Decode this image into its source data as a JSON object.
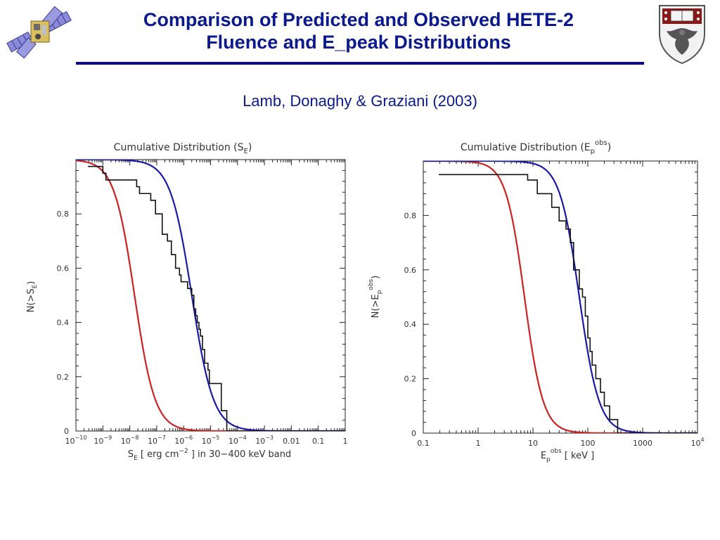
{
  "slide": {
    "title_line1": "Comparison of Predicted and Observed HETE-2",
    "title_line2": "Fluence and E_peak Distributions",
    "subtitle": "Lamb, Donaghy & Graziani (2003)"
  },
  "colors": {
    "title": "#0a1a8c",
    "observed": "#111111",
    "model_blue": "#1a1aa8",
    "model_red": "#cc2222"
  },
  "chart_data": [
    {
      "type": "line",
      "title_main": "Cumulative Distribution (S",
      "title_sub": "E",
      "title_end": ")",
      "ylabel_main": "N(>S",
      "ylabel_sub": "E",
      "ylabel_end": ")",
      "xlabel_parts": [
        "S",
        "E",
        " [ erg cm",
        "−2",
        " ] in 30−400 keV band"
      ],
      "xscale": "log",
      "xlim": [
        1e-10,
        1
      ],
      "ylim": [
        0,
        1
      ],
      "yticks": [
        "0",
        "0.2",
        "0.4",
        "0.6",
        "0.8"
      ],
      "xtick_labels": [
        {
          "base": "10",
          "exp": "−10"
        },
        {
          "base": "10",
          "exp": "−9"
        },
        {
          "base": "10",
          "exp": "−8"
        },
        {
          "base": "10",
          "exp": "−7"
        },
        {
          "base": "10",
          "exp": "−6"
        },
        {
          "base": "10",
          "exp": "−5"
        },
        {
          "base": "10",
          "exp": "−4"
        },
        {
          "base": "10",
          "exp": "−3"
        },
        {
          "base": "0.01",
          "exp": ""
        },
        {
          "base": "0.1",
          "exp": ""
        },
        {
          "base": "1",
          "exp": ""
        }
      ],
      "series": [
        {
          "color": "#111111",
          "kind": "step",
          "x": [
            2.8e-10,
            1e-09,
            1.3e-09,
            1.8e-08,
            2.3e-08,
            6e-08,
            9e-08,
            1.6e-07,
            2.5e-07,
            3.5e-07,
            5e-07,
            7e-07,
            8e-07,
            1.4e-06,
            2e-06,
            2.4e-06,
            2.8e-06,
            3.2e-06,
            3.7e-06,
            4.2e-06,
            5e-06,
            6e-06,
            8e-06,
            9e-06,
            2.5e-05,
            4e-05
          ],
          "y": [
            0.975,
            0.95,
            0.925,
            0.9,
            0.875,
            0.85,
            0.8,
            0.725,
            0.7,
            0.65,
            0.6,
            0.575,
            0.55,
            0.525,
            0.5,
            0.45,
            0.425,
            0.4,
            0.375,
            0.35,
            0.3,
            0.25,
            0.225,
            0.175,
            0.075,
            0.0
          ]
        },
        {
          "color": "#1a1aa8",
          "kind": "logistic",
          "x0": 2e-06,
          "width_dex": 0.4
        },
        {
          "color": "#cc2222",
          "kind": "logistic",
          "x0": 1.5e-08,
          "width_dex": 0.38
        }
      ]
    },
    {
      "type": "line",
      "title_main": "Cumulative Distribution (E",
      "title_sub": "p",
      "title_sup": "obs",
      "title_end": ")",
      "ylabel_main": "N(>E",
      "ylabel_sub": "p",
      "ylabel_sup": "obs",
      "ylabel_end": ")",
      "xlabel_parts": [
        "E",
        "p",
        "obs",
        " [ keV ]"
      ],
      "xscale": "log",
      "xlim": [
        0.1,
        10000
      ],
      "ylim": [
        0,
        1
      ],
      "yticks": [
        "0",
        "0.2",
        "0.4",
        "0.6",
        "0.8"
      ],
      "xtick_labels": [
        {
          "base": "0.1",
          "exp": ""
        },
        {
          "base": "1",
          "exp": ""
        },
        {
          "base": "10",
          "exp": ""
        },
        {
          "base": "100",
          "exp": ""
        },
        {
          "base": "1000",
          "exp": ""
        },
        {
          "base": "10",
          "exp": "4"
        }
      ],
      "series": [
        {
          "color": "#111111",
          "kind": "step",
          "x": [
            5,
            8,
            12,
            22,
            30,
            40,
            48,
            55,
            70,
            80,
            90,
            100,
            110,
            120,
            140,
            170,
            200,
            250,
            350
          ],
          "y": [
            0.95,
            0.93,
            0.88,
            0.83,
            0.78,
            0.75,
            0.7,
            0.6,
            0.53,
            0.5,
            0.43,
            0.35,
            0.3,
            0.25,
            0.2,
            0.15,
            0.1,
            0.05,
            0.0
          ]
        },
        {
          "color": "#1a1aa8",
          "kind": "logistic",
          "x0": 70,
          "width_dex": 0.18
        },
        {
          "color": "#cc2222",
          "kind": "logistic",
          "x0": 7,
          "width_dex": 0.17
        }
      ]
    }
  ]
}
